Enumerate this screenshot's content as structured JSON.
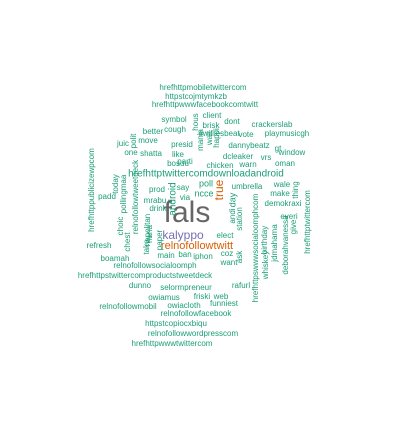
{
  "colors": {
    "green": "#1b9e77",
    "orange": "#d95f02",
    "purple": "#7570b3",
    "gray": "#666666"
  },
  "words": [
    {
      "text": "fals",
      "color": "gray",
      "rotate": false
    },
    {
      "text": "kalyppo",
      "color": "purple",
      "rotate": false
    },
    {
      "text": "relnofollowtwitt",
      "color": "orange",
      "rotate": false
    },
    {
      "text": "true",
      "color": "orange",
      "rotate": true
    },
    {
      "text": "hrefhttptwittercomdownloadandroid",
      "color": "green",
      "rotate": false
    },
    {
      "text": "hrefhttpmobiletwittercom",
      "color": "green",
      "rotate": false
    },
    {
      "text": "httpstcojmtymkzb",
      "color": "green",
      "rotate": false
    },
    {
      "text": "hrefhttpwwwfacebookcomtwitt",
      "color": "green",
      "rotate": false
    },
    {
      "text": "symbol",
      "color": "green",
      "rotate": false
    },
    {
      "text": "client",
      "color": "green",
      "rotate": false
    },
    {
      "text": "hous",
      "color": "green",
      "rotate": true
    },
    {
      "text": "brisk",
      "color": "green",
      "rotate": false
    },
    {
      "text": "dont",
      "color": "green",
      "rotate": false
    },
    {
      "text": "crackerslab",
      "color": "green",
      "rotate": false
    },
    {
      "text": "better",
      "color": "green",
      "rotate": false
    },
    {
      "text": "cough",
      "color": "green",
      "rotate": false
    },
    {
      "text": "ewilliesbeat",
      "color": "green",
      "rotate": false
    },
    {
      "text": "vote",
      "color": "green",
      "rotate": false
    },
    {
      "text": "playmusicgh",
      "color": "green",
      "rotate": false
    },
    {
      "text": "juic",
      "color": "green",
      "rotate": false
    },
    {
      "text": "move",
      "color": "green",
      "rotate": false
    },
    {
      "text": "polit",
      "color": "green",
      "rotate": true
    },
    {
      "text": "presid",
      "color": "green",
      "rotate": false
    },
    {
      "text": "mania",
      "color": "green",
      "rotate": true
    },
    {
      "text": "wait",
      "color": "green",
      "rotate": true
    },
    {
      "text": "happi",
      "color": "green",
      "rotate": true
    },
    {
      "text": "dannybeatz",
      "color": "green",
      "rotate": false
    },
    {
      "text": "gt",
      "color": "green",
      "rotate": false
    },
    {
      "text": "window",
      "color": "green",
      "rotate": false
    },
    {
      "text": "shatta",
      "color": "green",
      "rotate": false
    },
    {
      "text": "one",
      "color": "green",
      "rotate": false
    },
    {
      "text": "like",
      "color": "green",
      "rotate": false
    },
    {
      "text": "parti",
      "color": "green",
      "rotate": false
    },
    {
      "text": "dcleaker",
      "color": "green",
      "rotate": false
    },
    {
      "text": "vrs",
      "color": "green",
      "rotate": false
    },
    {
      "text": "oman",
      "color": "green",
      "rotate": false
    },
    {
      "text": "hrefhttppublicizewpcom",
      "color": "green",
      "rotate": true
    },
    {
      "text": "bosuu",
      "color": "green",
      "rotate": false
    },
    {
      "text": "chicken",
      "color": "green",
      "rotate": false
    },
    {
      "text": "warn",
      "color": "green",
      "rotate": false
    },
    {
      "text": "today",
      "color": "green",
      "rotate": true
    },
    {
      "text": "hrefhttptwittercom",
      "color": "green",
      "rotate": true
    },
    {
      "text": "pollingmaa",
      "color": "green",
      "rotate": true
    },
    {
      "text": "relnofollowtweetdeck",
      "color": "green",
      "rotate": true
    },
    {
      "text": "poll",
      "color": "green",
      "rotate": false
    },
    {
      "text": "umbrella",
      "color": "green",
      "rotate": false
    },
    {
      "text": "wale",
      "color": "green",
      "rotate": false
    },
    {
      "text": "thing",
      "color": "green",
      "rotate": true
    },
    {
      "text": "padd",
      "color": "green",
      "rotate": false
    },
    {
      "text": "prod",
      "color": "green",
      "rotate": false
    },
    {
      "text": "say",
      "color": "green",
      "rotate": false
    },
    {
      "text": "ncce",
      "color": "green",
      "rotate": false
    },
    {
      "text": "make",
      "color": "green",
      "rotate": false
    },
    {
      "text": "mrabu",
      "color": "green",
      "rotate": false
    },
    {
      "text": "via",
      "color": "green",
      "rotate": false
    },
    {
      "text": "android",
      "color": "green",
      "rotate": true
    },
    {
      "text": "day",
      "color": "green",
      "rotate": true
    },
    {
      "text": "demokraxi",
      "color": "green",
      "rotate": false
    },
    {
      "text": "drink",
      "color": "green",
      "rotate": false
    },
    {
      "text": "everi",
      "color": "green",
      "rotate": false
    },
    {
      "text": "andi",
      "color": "green",
      "rotate": true
    },
    {
      "text": "station",
      "color": "green",
      "rotate": true
    },
    {
      "text": "napolitan",
      "color": "green",
      "rotate": true
    },
    {
      "text": "hrefhttpswwwsocialoomphcom",
      "color": "green",
      "rotate": true
    },
    {
      "text": "give",
      "color": "green",
      "rotate": true
    },
    {
      "text": "choic",
      "color": "green",
      "rotate": true
    },
    {
      "text": "nana",
      "color": "green",
      "rotate": true
    },
    {
      "text": "chest",
      "color": "green",
      "rotate": true
    },
    {
      "text": "take",
      "color": "green",
      "rotate": true
    },
    {
      "text": "paper",
      "color": "green",
      "rotate": true
    },
    {
      "text": "elect",
      "color": "green",
      "rotate": false
    },
    {
      "text": "birthday",
      "color": "green",
      "rotate": true
    },
    {
      "text": "jdmahama",
      "color": "green",
      "rotate": true
    },
    {
      "text": "deborahvanessa",
      "color": "green",
      "rotate": true
    },
    {
      "text": "refresh",
      "color": "green",
      "rotate": false
    },
    {
      "text": "main",
      "color": "green",
      "rotate": false
    },
    {
      "text": "ban",
      "color": "green",
      "rotate": false
    },
    {
      "text": "iphon",
      "color": "green",
      "rotate": false
    },
    {
      "text": "coz",
      "color": "green",
      "rotate": false
    },
    {
      "text": "boamah",
      "color": "green",
      "rotate": false
    },
    {
      "text": "want",
      "color": "green",
      "rotate": false
    },
    {
      "text": "whiskey",
      "color": "green",
      "rotate": true
    },
    {
      "text": "relnofollowsocialoomph",
      "color": "green",
      "rotate": false
    },
    {
      "text": "ask",
      "color": "green",
      "rotate": true
    },
    {
      "text": "hrefhttpstwittercomproductstweetdeck",
      "color": "green",
      "rotate": false
    },
    {
      "text": "rafurl",
      "color": "green",
      "rotate": false
    },
    {
      "text": "dunno",
      "color": "green",
      "rotate": false
    },
    {
      "text": "selormpreneur",
      "color": "green",
      "rotate": false
    },
    {
      "text": "owiamus",
      "color": "green",
      "rotate": false
    },
    {
      "text": "friski",
      "color": "green",
      "rotate": false
    },
    {
      "text": "web",
      "color": "green",
      "rotate": false
    },
    {
      "text": "relnofollowmobil",
      "color": "green",
      "rotate": false
    },
    {
      "text": "owiacloth",
      "color": "green",
      "rotate": false
    },
    {
      "text": "funniest",
      "color": "green",
      "rotate": false
    },
    {
      "text": "relnofollowfacebook",
      "color": "green",
      "rotate": false
    },
    {
      "text": "httpstcopiocxbiqu",
      "color": "green",
      "rotate": false
    },
    {
      "text": "relnofollowwordpresscom",
      "color": "green",
      "rotate": false
    },
    {
      "text": "hrefhttpwwwtwittercom",
      "color": "green",
      "rotate": false
    }
  ]
}
